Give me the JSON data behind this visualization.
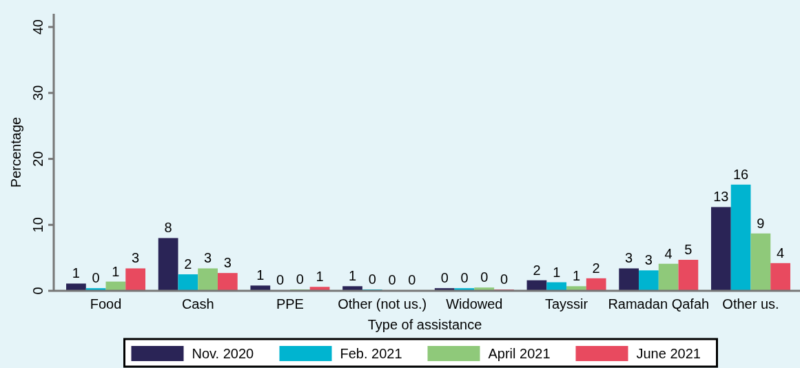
{
  "chart_data": {
    "type": "bar",
    "xlabel": "Type of assistance",
    "ylabel": "Percentage",
    "categories": [
      "Food",
      "Cash",
      "PPE",
      "Other (not us.)",
      "Widowed",
      "Tayssir",
      "Ramadan Qafah",
      "Other us."
    ],
    "series": [
      {
        "name": "Nov. 2020",
        "color": "#2a2456",
        "values": [
          1.1,
          8.0,
          0.8,
          0.7,
          0.4,
          1.6,
          3.4,
          12.7
        ],
        "value_labels": [
          "1",
          "8",
          "1",
          "1",
          "0",
          "2",
          "3",
          "13"
        ]
      },
      {
        "name": "Feb. 2021",
        "color": "#00b4d0",
        "values": [
          0.4,
          2.5,
          0.1,
          0.2,
          0.4,
          1.3,
          3.1,
          16.1
        ],
        "value_labels": [
          "0",
          "2",
          "0",
          "0",
          "0",
          "1",
          "3",
          "16"
        ]
      },
      {
        "name": "April 2021",
        "color": "#8fc97a",
        "values": [
          1.4,
          3.4,
          0.2,
          0.1,
          0.5,
          0.7,
          4.1,
          8.7
        ],
        "value_labels": [
          "1",
          "3",
          "0",
          "0",
          "0",
          "1",
          "4",
          "9"
        ]
      },
      {
        "name": "June 2021",
        "color": "#e84a5f",
        "values": [
          3.4,
          2.7,
          0.6,
          0.1,
          0.2,
          1.9,
          4.7,
          4.2
        ],
        "value_labels": [
          "3",
          "3",
          "1",
          "0",
          "0",
          "2",
          "5",
          "4"
        ]
      }
    ],
    "ylim": [
      0,
      42
    ],
    "yticks": [
      0,
      10,
      20,
      30,
      40
    ],
    "grid": false,
    "legend": "bottom"
  }
}
